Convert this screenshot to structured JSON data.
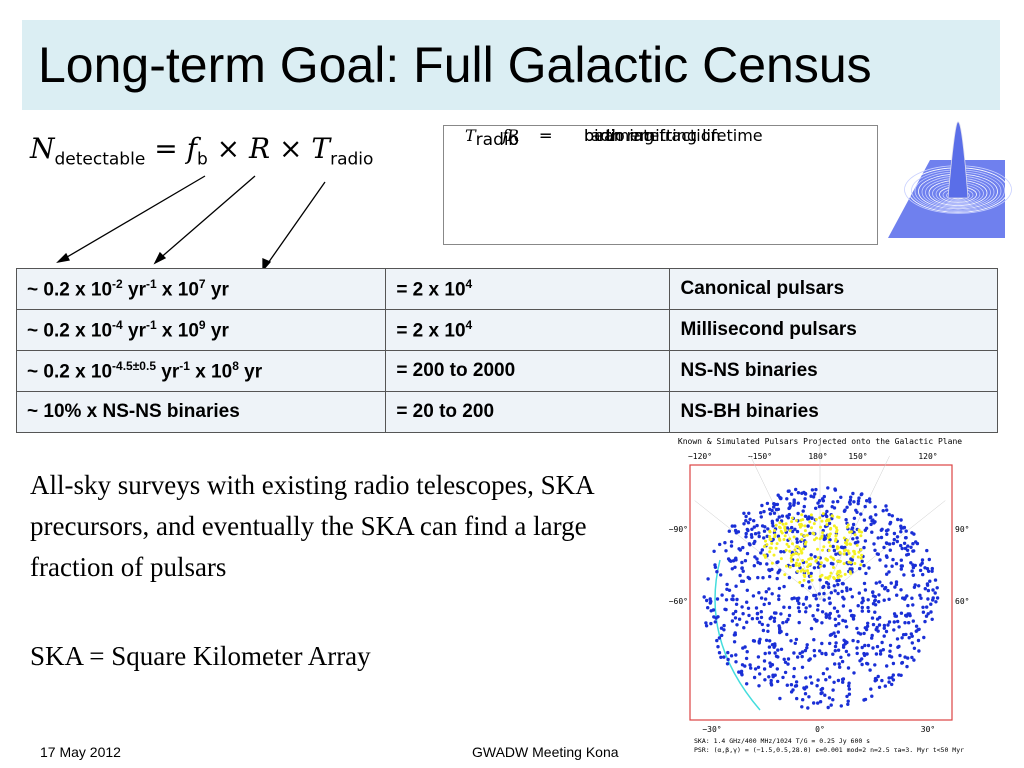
{
  "title": "Long-term Goal: Full Galactic Census",
  "equation": {
    "lhs": {
      "symbol": "N",
      "subscript": "detectable"
    },
    "equals": "=",
    "operator": "×",
    "terms": [
      {
        "symbol": "f",
        "subscript": "b"
      },
      {
        "symbol": "R"
      },
      {
        "symbol": "T",
        "subscript": "radio"
      }
    ]
  },
  "definitions": [
    {
      "symbol": "f",
      "subscript": "b",
      "equals": "=",
      "meaning": "beaming fraction"
    },
    {
      "symbol": "R",
      "equals": "=",
      "meaning": "birth rate"
    },
    {
      "symbol": "T",
      "subscript": "radio",
      "equals": "=",
      "meaning": "radio emitting lifetime"
    }
  ],
  "table": {
    "rows": [
      [
        [
          "~ 0.2 x 10",
          "-2",
          " yr",
          "-1",
          " x 10",
          "7",
          " yr"
        ],
        [
          "= 2 x 10",
          "4"
        ],
        [
          "Canonical pulsars"
        ]
      ],
      [
        [
          "~ 0.2 x 10",
          "-4",
          " yr",
          "-1",
          " x 10",
          "9",
          " yr"
        ],
        [
          "= 2 x 10",
          "4"
        ],
        [
          "Millisecond pulsars"
        ]
      ],
      [
        [
          "~ 0.2 x 10",
          "-4.5±0.5",
          " yr",
          "-1",
          " x 10",
          "8",
          " yr"
        ],
        [
          "= 200 to 2000"
        ],
        [
          "NS-NS binaries"
        ]
      ],
      [
        [
          "~ 10% x NS-NS binaries"
        ],
        [
          "= 20 to 200"
        ],
        [
          "NS-BH binaries"
        ]
      ]
    ]
  },
  "paragraphs": [
    "All-sky surveys with existing radio telescopes, SKA precursors, and eventually the SKA can find a large fraction of pulsars",
    "SKA = Square Kilometer Array"
  ],
  "figure": {
    "title": "Known & Simulated Pulsars Projected onto the Galactic Plane",
    "top_labels": [
      "−120°",
      "−150°",
      "180°",
      "150°",
      "120°"
    ],
    "left_labels": [
      "−90°",
      "−60°"
    ],
    "right_labels": [
      "90°",
      "60°"
    ],
    "bottom_labels": [
      "−30°",
      "0°",
      "30°"
    ],
    "caption": [
      "SKA: 1.4 GHz/400 MHz/1024   T/G = 0.25 Jy   600 s",
      "PSR: (α,β,γ) = (−1.5,0.5,28.0)   ε=0.001   mod=2   n=2.5   τa=3. Myr   t<50 Myr"
    ]
  },
  "footer": {
    "date": "17 May 2012",
    "event": "GWADW Meeting Kona"
  }
}
